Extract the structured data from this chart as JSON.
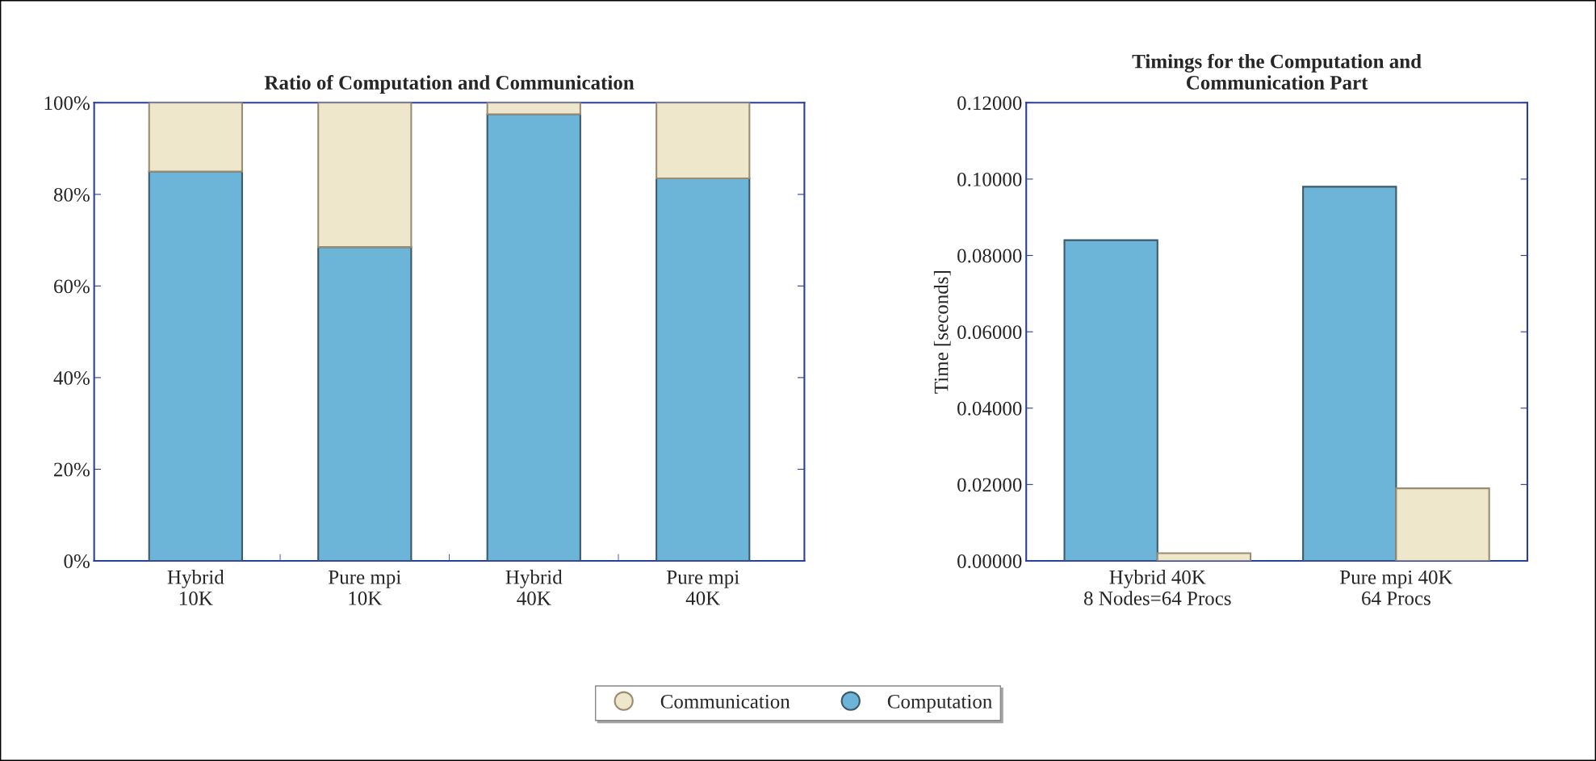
{
  "chart_data": [
    {
      "type": "bar",
      "title": "Ratio of Computation and Communication",
      "categories": [
        "Hybrid\n10K",
        "Pure mpi\n10K",
        "Hybrid\n40K",
        "Pure mpi\n40K"
      ],
      "stacked": true,
      "series": [
        {
          "name": "Computation",
          "color": "#6cb5d8",
          "values": [
            85,
            68.5,
            97.5,
            83.5
          ]
        },
        {
          "name": "Communication",
          "color": "#efe7cb",
          "values": [
            15,
            31.5,
            2.5,
            16.5
          ]
        }
      ],
      "ylim": [
        0,
        100
      ],
      "yticks": [
        {
          "value": 0,
          "label": "0%"
        },
        {
          "value": 20,
          "label": "20%"
        },
        {
          "value": 40,
          "label": "40%"
        },
        {
          "value": 60,
          "label": "60%"
        },
        {
          "value": 80,
          "label": "80%"
        },
        {
          "value": 100,
          "label": "100%"
        }
      ],
      "grid": false,
      "legend": "bottom"
    },
    {
      "type": "bar",
      "title": "Timings for the Computation and\nCommunication Part",
      "ylabel": "Time [seconds]",
      "categories": [
        "Hybrid 40K\n8 Nodes=64 Procs",
        "Pure mpi 40K\n64 Procs"
      ],
      "series": [
        {
          "name": "Computation",
          "color": "#6cb5d8",
          "values": [
            0.084,
            0.098
          ]
        },
        {
          "name": "Communication",
          "color": "#efe7cb",
          "values": [
            0.002,
            0.019
          ]
        }
      ],
      "ylim": [
        0,
        0.12
      ],
      "yticks": [
        {
          "value": 0,
          "label": "0.00000"
        },
        {
          "value": 0.02,
          "label": "0.02000"
        },
        {
          "value": 0.04,
          "label": "0.04000"
        },
        {
          "value": 0.06,
          "label": "0.06000"
        },
        {
          "value": 0.08,
          "label": "0.08000"
        },
        {
          "value": 0.1,
          "label": "0.10000"
        },
        {
          "value": 0.12,
          "label": "0.12000"
        }
      ],
      "grid": false,
      "legend": "bottom"
    }
  ]
}
